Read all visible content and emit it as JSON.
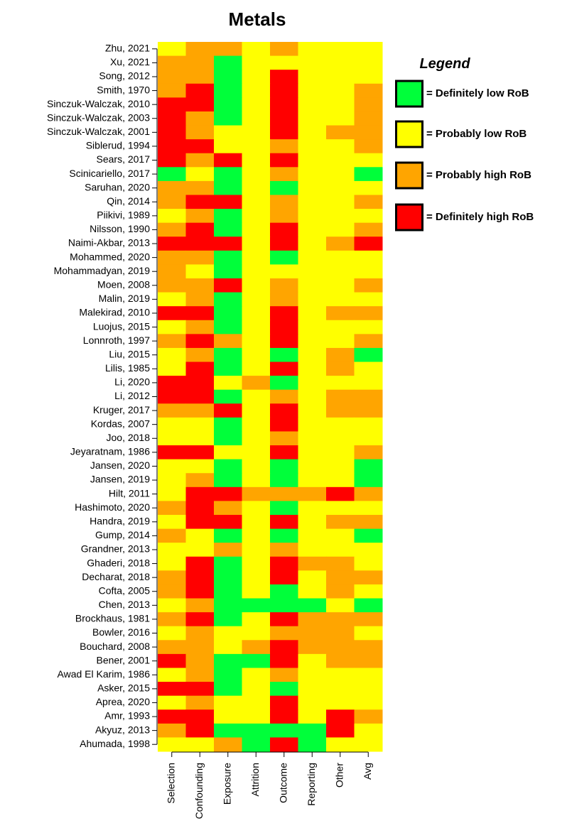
{
  "chart_data": {
    "type": "heatmap",
    "title": "Metals",
    "legend_title": "Legend",
    "legend": [
      {
        "label": "= Definitely low RoB",
        "color": "#00ff3a"
      },
      {
        "label": "= Probably low RoB",
        "color": "#ffff00"
      },
      {
        "label": "= Probably high RoB",
        "color": "#ffa500"
      },
      {
        "label": "= Definitely high RoB",
        "color": "#ff0000"
      }
    ],
    "columns": [
      "Selection",
      "Confounding",
      "Exposure",
      "Attrition",
      "Outcome",
      "Reporting",
      "Other",
      "Avg"
    ],
    "categories": [
      "Zhu, 2021",
      "Xu, 2021",
      "Song, 2012",
      "Smith, 1970",
      "Sinczuk-Walczak, 2010",
      "Sinczuk-Walczak, 2003",
      "Sinczuk-Walczak, 2001",
      "Siblerud, 1994",
      "Sears, 2017",
      "Scinicariello, 2017",
      "Saruhan, 2020",
      "Qin, 2014",
      "Piikivi, 1989",
      "Nilsson, 1990",
      "Naimi-Akbar, 2013",
      "Mohammed, 2020",
      "Mohammadyan, 2019",
      "Moen, 2008",
      "Malin, 2019",
      "Malekirad, 2010",
      "Luojus, 2015",
      "Lonnroth, 1997",
      "Liu, 2015",
      "Lilis, 1985",
      "Li, 2020",
      "Li, 2012",
      "Kruger, 2017",
      "Kordas, 2007",
      "Joo, 2018",
      "Jeyaratnam, 1986",
      "Jansen, 2020",
      "Jansen, 2019",
      "Hilt, 2011",
      "Hashimoto, 2020",
      "Handra, 2019",
      "Gump, 2014",
      "Grandner, 2013",
      "Ghaderi, 2018",
      "Decharat, 2018",
      "Cofta, 2005",
      "Chen, 2013",
      "Brockhaus, 1981",
      "Bowler, 2016",
      "Bouchard, 2008",
      "Bener, 2001",
      "Awad El Karim, 1986",
      "Asker, 2015",
      "Aprea, 2020",
      "Amr, 1993",
      "Akyuz, 2013",
      "Ahumada, 1998"
    ],
    "values": [
      [
        2,
        3,
        3,
        2,
        3,
        2,
        2,
        2
      ],
      [
        3,
        3,
        1,
        2,
        2,
        2,
        2,
        2
      ],
      [
        3,
        3,
        1,
        2,
        4,
        2,
        2,
        2
      ],
      [
        3,
        4,
        1,
        2,
        4,
        2,
        2,
        3
      ],
      [
        4,
        4,
        1,
        2,
        4,
        2,
        2,
        3
      ],
      [
        4,
        3,
        1,
        2,
        4,
        2,
        2,
        3
      ],
      [
        4,
        3,
        2,
        2,
        4,
        2,
        3,
        3
      ],
      [
        4,
        4,
        2,
        2,
        3,
        2,
        2,
        3
      ],
      [
        4,
        3,
        4,
        2,
        4,
        2,
        2,
        2
      ],
      [
        1,
        2,
        1,
        2,
        3,
        2,
        2,
        1
      ],
      [
        3,
        3,
        1,
        2,
        1,
        2,
        2,
        2
      ],
      [
        3,
        4,
        4,
        2,
        3,
        2,
        2,
        3
      ],
      [
        2,
        3,
        1,
        2,
        3,
        2,
        2,
        2
      ],
      [
        3,
        4,
        1,
        2,
        4,
        2,
        2,
        3
      ],
      [
        4,
        4,
        4,
        2,
        4,
        2,
        3,
        4
      ],
      [
        3,
        3,
        1,
        2,
        1,
        2,
        2,
        2
      ],
      [
        3,
        2,
        1,
        2,
        2,
        2,
        2,
        2
      ],
      [
        3,
        3,
        4,
        2,
        3,
        2,
        2,
        3
      ],
      [
        2,
        3,
        1,
        2,
        3,
        2,
        2,
        2
      ],
      [
        4,
        4,
        1,
        2,
        4,
        2,
        3,
        3
      ],
      [
        2,
        3,
        1,
        2,
        4,
        2,
        2,
        2
      ],
      [
        3,
        4,
        3,
        2,
        4,
        2,
        2,
        3
      ],
      [
        2,
        3,
        1,
        2,
        1,
        2,
        3,
        1
      ],
      [
        2,
        4,
        1,
        2,
        4,
        2,
        3,
        2
      ],
      [
        4,
        4,
        2,
        3,
        1,
        2,
        2,
        2
      ],
      [
        4,
        4,
        1,
        2,
        3,
        2,
        3,
        3
      ],
      [
        3,
        3,
        4,
        2,
        4,
        2,
        3,
        3
      ],
      [
        2,
        2,
        1,
        2,
        4,
        2,
        2,
        2
      ],
      [
        2,
        2,
        1,
        2,
        3,
        2,
        2,
        2
      ],
      [
        4,
        4,
        2,
        2,
        4,
        2,
        2,
        3
      ],
      [
        2,
        2,
        1,
        2,
        1,
        2,
        2,
        1
      ],
      [
        2,
        3,
        1,
        2,
        1,
        2,
        2,
        1
      ],
      [
        2,
        4,
        4,
        3,
        3,
        3,
        4,
        3
      ],
      [
        3,
        4,
        3,
        2,
        1,
        2,
        2,
        2
      ],
      [
        2,
        4,
        4,
        2,
        4,
        2,
        3,
        3
      ],
      [
        3,
        2,
        1,
        2,
        1,
        2,
        2,
        1
      ],
      [
        2,
        2,
        3,
        2,
        3,
        2,
        2,
        2
      ],
      [
        2,
        4,
        1,
        2,
        4,
        3,
        3,
        2
      ],
      [
        3,
        4,
        1,
        2,
        4,
        2,
        3,
        3
      ],
      [
        3,
        4,
        1,
        2,
        1,
        2,
        3,
        2
      ],
      [
        2,
        3,
        1,
        1,
        1,
        1,
        2,
        1
      ],
      [
        3,
        4,
        1,
        2,
        4,
        3,
        3,
        3
      ],
      [
        2,
        3,
        2,
        2,
        3,
        3,
        3,
        2
      ],
      [
        3,
        3,
        2,
        3,
        4,
        3,
        3,
        3
      ],
      [
        4,
        3,
        1,
        1,
        4,
        2,
        3,
        3
      ],
      [
        2,
        3,
        1,
        2,
        3,
        2,
        2,
        2
      ],
      [
        4,
        4,
        1,
        2,
        1,
        2,
        2,
        2
      ],
      [
        2,
        3,
        2,
        2,
        4,
        2,
        2,
        2
      ],
      [
        4,
        4,
        2,
        2,
        4,
        2,
        4,
        3
      ],
      [
        3,
        4,
        1,
        1,
        1,
        1,
        4,
        2
      ],
      [
        2,
        2,
        3,
        1,
        4,
        1,
        2,
        2
      ]
    ]
  }
}
